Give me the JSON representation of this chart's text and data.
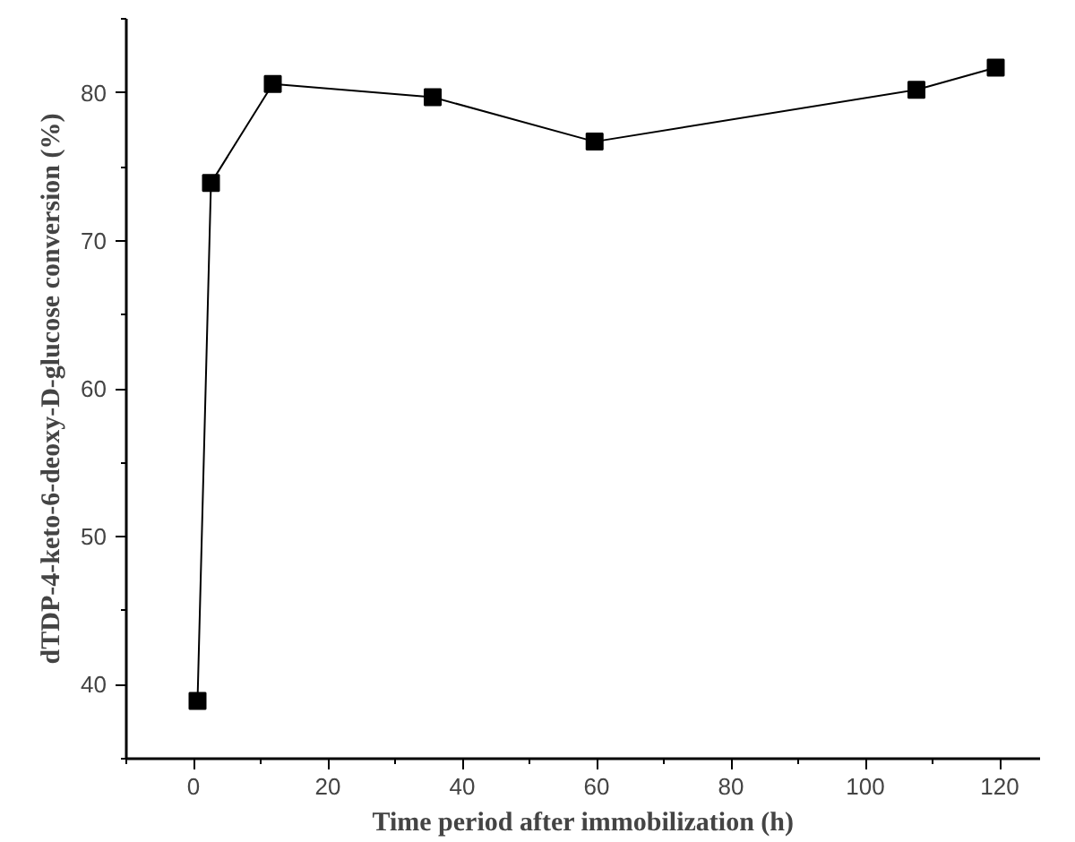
{
  "chart_data": {
    "type": "line",
    "xlabel": "Time period after immobilization (h)",
    "ylabel": "dTDP-4-keto-6-deoxy-D-glucose conversion (%)",
    "x": [
      0.6,
      2.6,
      11.8,
      35.6,
      59.7,
      107.6,
      119.4
    ],
    "series": [
      {
        "color": "#000000",
        "values": [
          38.9,
          73.9,
          80.6,
          79.7,
          76.7,
          80.2,
          81.7
        ]
      }
    ],
    "xlim": [
      -10,
      126
    ],
    "ylim": [
      35,
      85
    ],
    "xticks": [
      0,
      20,
      40,
      60,
      80,
      100,
      120
    ],
    "yticks": [
      40,
      50,
      60,
      70,
      80
    ],
    "grid": false,
    "marker": "square",
    "line_style": "solid"
  }
}
